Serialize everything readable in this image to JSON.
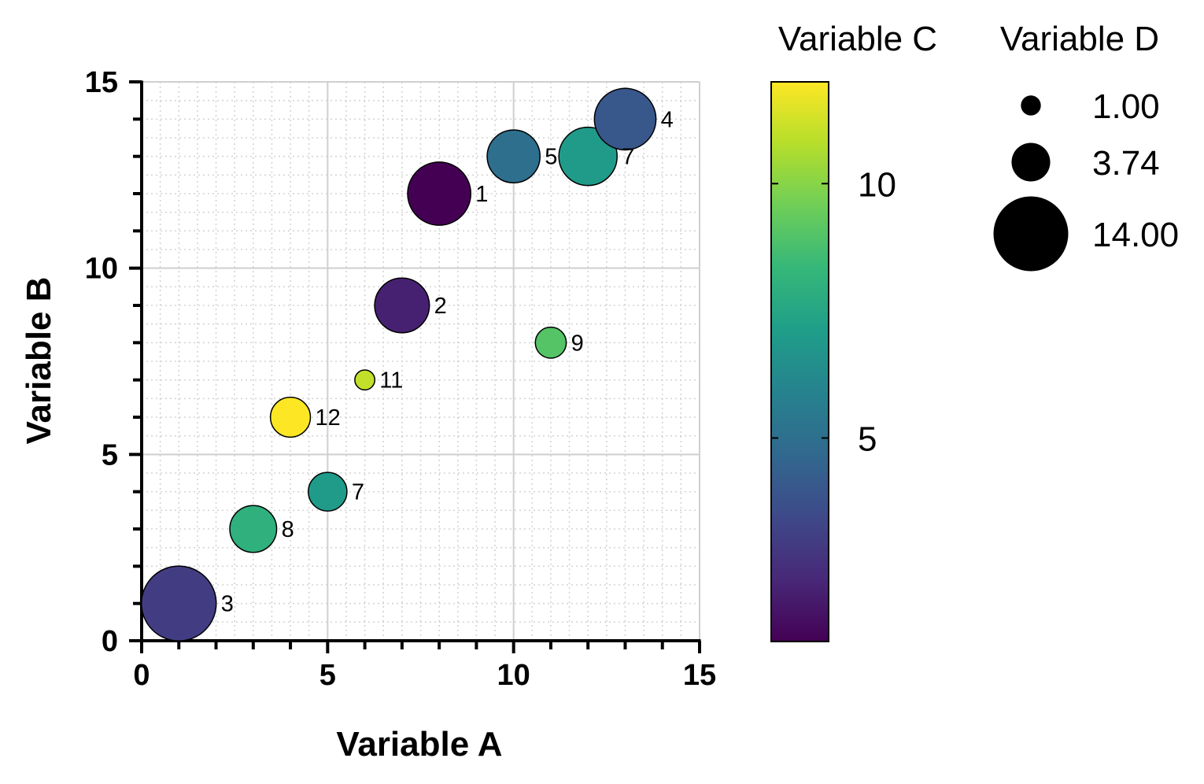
{
  "chart_data": {
    "type": "scatter",
    "xlabel": "Variable A",
    "ylabel": "Variable B",
    "xlim": [
      0,
      15
    ],
    "ylim": [
      0,
      15
    ],
    "x_ticks": [
      "0",
      "5",
      "10",
      "15"
    ],
    "y_ticks": [
      "0",
      "5",
      "10",
      "15"
    ],
    "grid": "major solid, minor dotted",
    "color_scale": {
      "title": "Variable C",
      "colormap": "viridis",
      "range": [
        1,
        12
      ],
      "ticks": [
        "5",
        "10"
      ],
      "tick_values": [
        5,
        10
      ]
    },
    "size_legend": {
      "title": "Variable D",
      "entries": [
        {
          "label": "1.00",
          "value": 1.0
        },
        {
          "label": "3.74",
          "value": 3.74
        },
        {
          "label": "14.00",
          "value": 14.0
        }
      ]
    },
    "points": [
      {
        "label": "3",
        "x": 1,
        "y": 1,
        "c": 3,
        "d": 14
      },
      {
        "label": "8",
        "x": 3,
        "y": 3,
        "c": 8,
        "d": 5.5
      },
      {
        "label": "7",
        "x": 5,
        "y": 4,
        "c": 7,
        "d": 3.74
      },
      {
        "label": "12",
        "x": 4,
        "y": 6,
        "c": 12,
        "d": 4
      },
      {
        "label": "11",
        "x": 6,
        "y": 7,
        "c": 11,
        "d": 1
      },
      {
        "label": "2",
        "x": 7,
        "y": 9,
        "c": 2,
        "d": 7.5
      },
      {
        "label": "9",
        "x": 11,
        "y": 8,
        "c": 9,
        "d": 2.4
      },
      {
        "label": "1",
        "x": 8,
        "y": 12,
        "c": 1,
        "d": 10
      },
      {
        "label": "5",
        "x": 10,
        "y": 13,
        "c": 5,
        "d": 7
      },
      {
        "label": "7",
        "x": 12,
        "y": 13,
        "c": 7,
        "d": 8.5
      },
      {
        "label": "4",
        "x": 13,
        "y": 14,
        "c": 4,
        "d": 9.5
      }
    ]
  }
}
